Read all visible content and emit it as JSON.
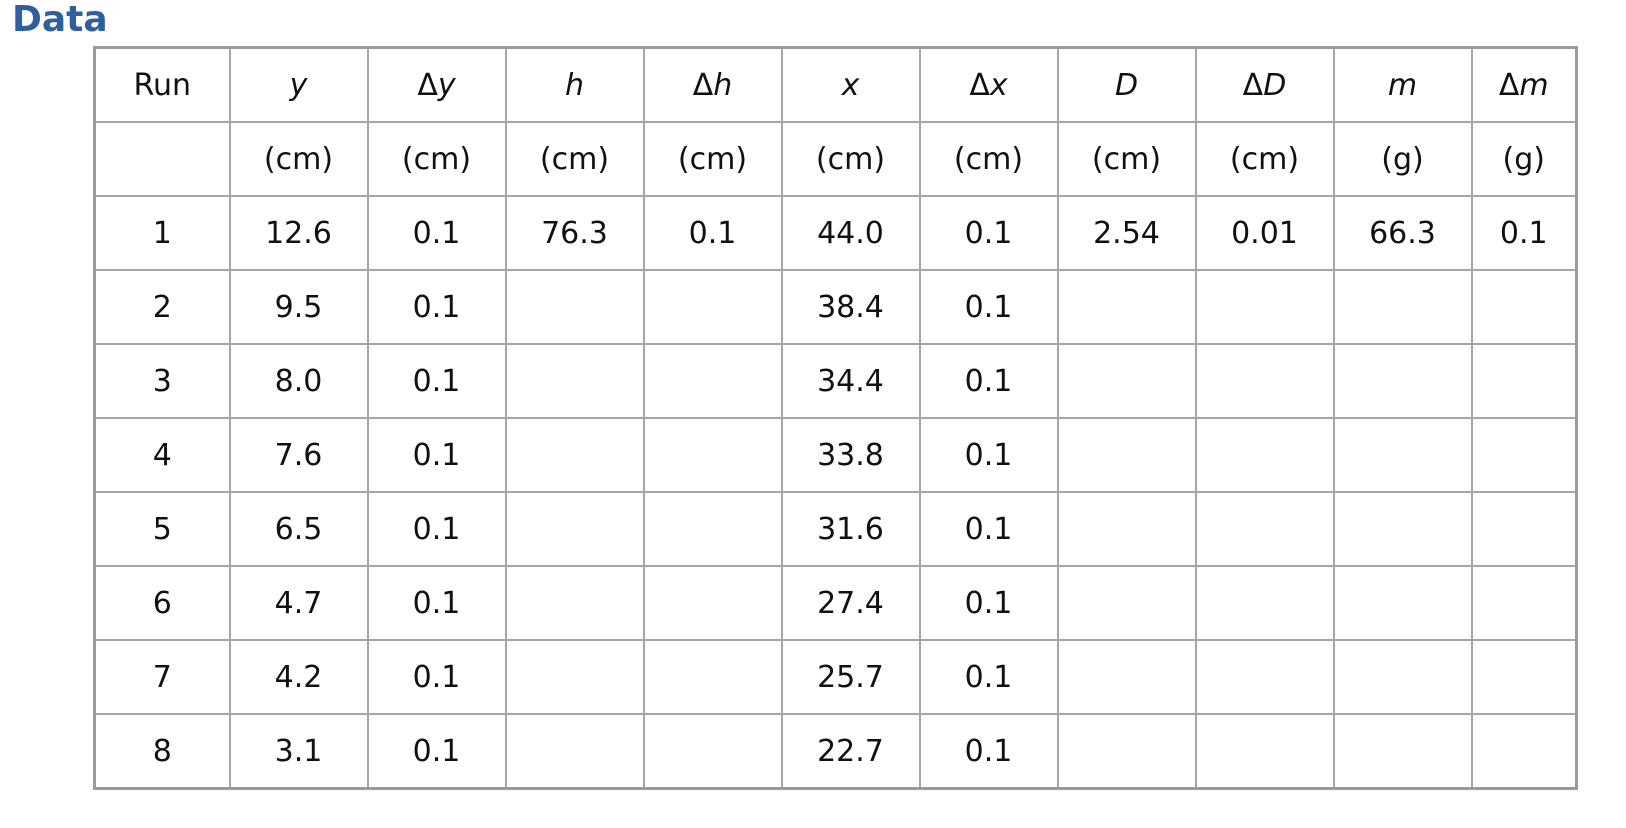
{
  "title": "Data",
  "table": {
    "headers": [
      {
        "prefix": "",
        "symbol": "",
        "plain": "Run"
      },
      {
        "prefix": "",
        "symbol": "y",
        "plain": ""
      },
      {
        "prefix": "Δ",
        "symbol": "y",
        "plain": ""
      },
      {
        "prefix": "",
        "symbol": "h",
        "plain": ""
      },
      {
        "prefix": "Δ",
        "symbol": "h",
        "plain": ""
      },
      {
        "prefix": "",
        "symbol": "x",
        "plain": ""
      },
      {
        "prefix": "Δ",
        "symbol": "x",
        "plain": ""
      },
      {
        "prefix": "",
        "symbol": "D",
        "plain": ""
      },
      {
        "prefix": "Δ",
        "symbol": "D",
        "plain": ""
      },
      {
        "prefix": "",
        "symbol": "m",
        "plain": ""
      },
      {
        "prefix": "Δ",
        "symbol": "m",
        "plain": ""
      }
    ],
    "units": [
      "",
      "(cm)",
      "(cm)",
      "(cm)",
      "(cm)",
      "(cm)",
      "(cm)",
      "(cm)",
      "(cm)",
      "(g)",
      "(g)"
    ],
    "rows": [
      [
        "1",
        "12.6",
        "0.1",
        "76.3",
        "0.1",
        "44.0",
        "0.1",
        "2.54",
        "0.01",
        "66.3",
        "0.1"
      ],
      [
        "2",
        "9.5",
        "0.1",
        "",
        "",
        "38.4",
        "0.1",
        "",
        "",
        "",
        ""
      ],
      [
        "3",
        "8.0",
        "0.1",
        "",
        "",
        "34.4",
        "0.1",
        "",
        "",
        "",
        ""
      ],
      [
        "4",
        "7.6",
        "0.1",
        "",
        "",
        "33.8",
        "0.1",
        "",
        "",
        "",
        ""
      ],
      [
        "5",
        "6.5",
        "0.1",
        "",
        "",
        "31.6",
        "0.1",
        "",
        "",
        "",
        ""
      ],
      [
        "6",
        "4.7",
        "0.1",
        "",
        "",
        "27.4",
        "0.1",
        "",
        "",
        "",
        ""
      ],
      [
        "7",
        "4.2",
        "0.1",
        "",
        "",
        "25.7",
        "0.1",
        "",
        "",
        "",
        ""
      ],
      [
        "8",
        "3.1",
        "0.1",
        "",
        "",
        "22.7",
        "0.1",
        "",
        "",
        "",
        ""
      ]
    ]
  }
}
